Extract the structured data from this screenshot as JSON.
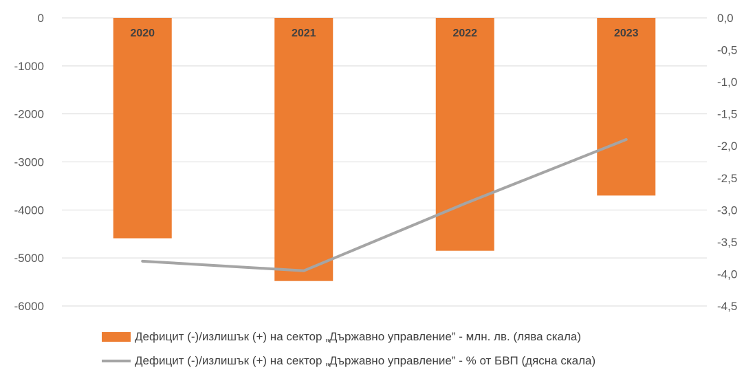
{
  "chart_data": {
    "type": "bar",
    "categories": [
      "2020",
      "2021",
      "2022",
      "2023"
    ],
    "series": [
      {
        "name": "Дефицит (-)/излишък (+) на сектор „Държавно управление” - млн. лв. (лява скала)",
        "type": "bar",
        "axis": "left",
        "color": "#ED7D31",
        "values": [
          -4590,
          -5480,
          -4850,
          -3700
        ]
      },
      {
        "name": "Дефицит (-)/излишък (+) на сектор „Държавно управление” - % от БВП (дясна скала)",
        "type": "line",
        "axis": "right",
        "color": "#A5A5A5",
        "values": [
          -3.8,
          -3.95,
          -2.9,
          -1.9
        ]
      }
    ],
    "left_axis": {
      "ylim": [
        -6000,
        0
      ],
      "ticks": [
        "0",
        "-1000",
        "-2000",
        "-3000",
        "-4000",
        "-5000",
        "-6000"
      ]
    },
    "right_axis": {
      "ylim": [
        -4.5,
        0
      ],
      "ticks": [
        "0,0",
        "-0,5",
        "-1,0",
        "-1,5",
        "-2,0",
        "-2,5",
        "-3,0",
        "-3,5",
        "-4,0",
        "-4,5"
      ]
    },
    "grid": true,
    "legend_position": "bottom"
  }
}
